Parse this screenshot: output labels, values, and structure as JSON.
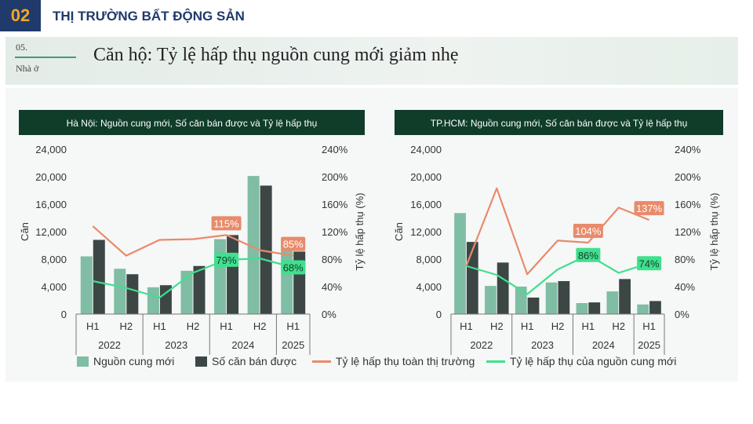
{
  "section": {
    "number": "02",
    "title": "THỊ TRƯỜNG BẤT ĐỘNG SẢN"
  },
  "banner": {
    "num": "05.",
    "sub": "Nhà ở",
    "title": "Căn hộ: Tỷ lệ hấp thụ nguồn cung mới giảm nhẹ"
  },
  "colors": {
    "supply": "#7fbda4",
    "sold": "#3c4745",
    "market_rate": "#e88b6b",
    "new_rate": "#3fe08e",
    "header_bg": "#0f3d2a"
  },
  "legend": {
    "supply": "Nguồn cung mới",
    "sold": "Số căn bán được",
    "market_rate": "Tỷ lệ hấp thụ toàn thị trường",
    "new_rate": "Tỷ lệ hấp thụ của nguồn cung mới"
  },
  "chart_data": [
    {
      "type": "bar",
      "title": "Hà Nội: Nguồn cung mới, Số căn bán được và Tỷ lệ hấp thụ",
      "ylabel": "Căn",
      "y2label": "Tỷ lệ hấp thụ (%)",
      "ylim": [
        0,
        24000
      ],
      "y2lim": [
        0,
        240
      ],
      "yticks": [
        "24,000",
        "20,000",
        "16,000",
        "12,000",
        "8,000",
        "4,000",
        "0"
      ],
      "y2ticks": [
        "240%",
        "200%",
        "160%",
        "120%",
        "80%",
        "40%",
        "0%"
      ],
      "categories": [
        "H1",
        "H2",
        "H1",
        "H2",
        "H1",
        "H2",
        "H1"
      ],
      "years": [
        "2022",
        "2023",
        "2024",
        "2025"
      ],
      "series": [
        {
          "name": "Nguồn cung mới",
          "kind": "bar",
          "values": [
            8400,
            6600,
            3900,
            6300,
            10900,
            20100,
            10800
          ]
        },
        {
          "name": "Số căn bán được",
          "kind": "bar",
          "values": [
            10800,
            5800,
            4200,
            7000,
            11500,
            18700,
            9100
          ]
        },
        {
          "name": "Tỷ lệ hấp thụ toàn thị trường",
          "kind": "line",
          "values": [
            128,
            85,
            108,
            109,
            115,
            93,
            85
          ]
        },
        {
          "name": "Tỷ lệ hấp thụ của nguồn cung mới",
          "kind": "line",
          "values": [
            48,
            38,
            24,
            60,
            79,
            81,
            68
          ]
        }
      ],
      "labels": [
        {
          "text": "115%",
          "series": 2,
          "index": 4
        },
        {
          "text": "85%",
          "series": 2,
          "index": 6
        },
        {
          "text": "79%",
          "series": 3,
          "index": 4
        },
        {
          "text": "68%",
          "series": 3,
          "index": 6
        }
      ]
    },
    {
      "type": "bar",
      "title": "TP.HCM: Nguồn cung mới, Số căn bán được và Tỷ lệ hấp thụ",
      "ylabel": "Căn",
      "y2label": "Tỷ lệ hấp thụ (%)",
      "ylim": [
        0,
        24000
      ],
      "y2lim": [
        0,
        240
      ],
      "yticks": [
        "24,000",
        "20,000",
        "16,000",
        "12,000",
        "8,000",
        "4,000",
        "0"
      ],
      "y2ticks": [
        "240%",
        "200%",
        "160%",
        "120%",
        "80%",
        "40%",
        "0%"
      ],
      "categories": [
        "H1",
        "H2",
        "H1",
        "H2",
        "H1",
        "H2",
        "H1"
      ],
      "years": [
        "2022",
        "2023",
        "2024",
        "2025"
      ],
      "series": [
        {
          "name": "Nguồn cung mới",
          "kind": "bar",
          "values": [
            14700,
            4100,
            4000,
            4600,
            1600,
            3300,
            1400
          ]
        },
        {
          "name": "Số căn bán được",
          "kind": "bar",
          "values": [
            10500,
            7500,
            2400,
            4800,
            1700,
            5100,
            1900
          ]
        },
        {
          "name": "Tỷ lệ hấp thụ toàn thị trường",
          "kind": "line",
          "values": [
            70,
            183,
            58,
            107,
            104,
            155,
            137
          ]
        },
        {
          "name": "Tỷ lệ hấp thụ của nguồn cung mới",
          "kind": "line",
          "values": [
            70,
            57,
            29,
            65,
            86,
            60,
            74
          ]
        }
      ],
      "labels": [
        {
          "text": "104%",
          "series": 2,
          "index": 4
        },
        {
          "text": "137%",
          "series": 2,
          "index": 6
        },
        {
          "text": "86%",
          "series": 3,
          "index": 4
        },
        {
          "text": "74%",
          "series": 3,
          "index": 6
        }
      ]
    }
  ]
}
